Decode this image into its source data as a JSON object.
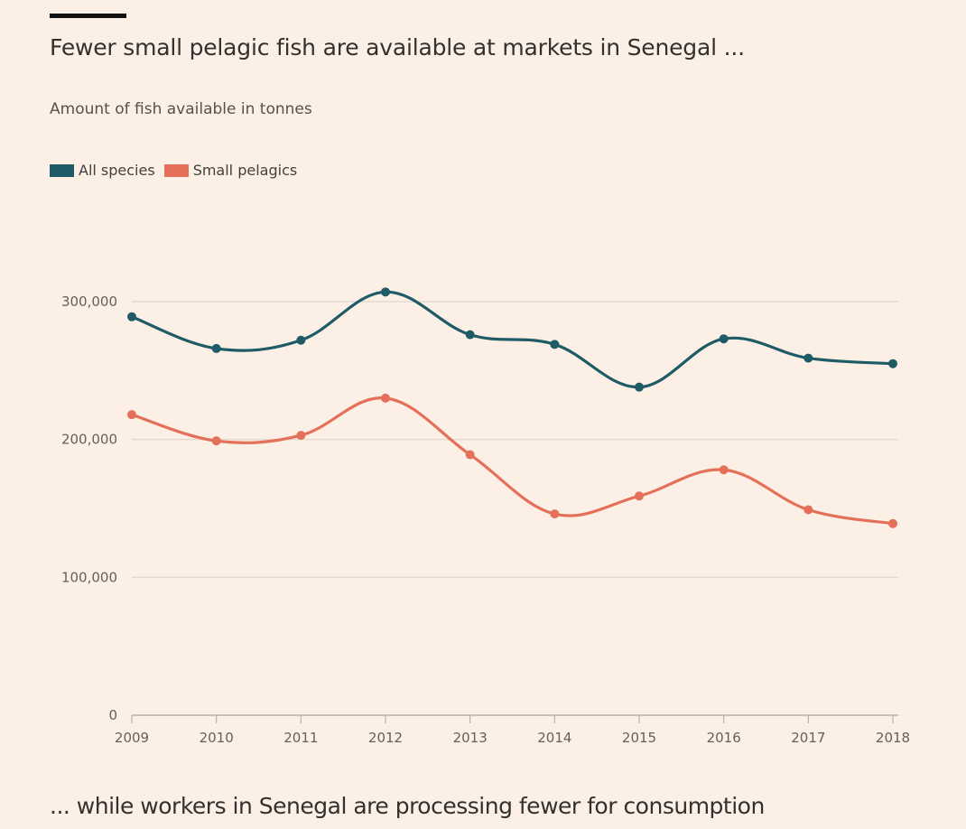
{
  "chart_data": {
    "type": "line",
    "title": "Fewer small pelagic fish are available at markets in Senegal ...",
    "subtitle": "Amount of fish available in tonnes",
    "xlabel": "",
    "ylabel": "",
    "x": [
      "2009",
      "2010",
      "2011",
      "2012",
      "2013",
      "2014",
      "2015",
      "2016",
      "2017",
      "2018"
    ],
    "ylim": [
      0,
      300000
    ],
    "yticks": [
      0,
      100000,
      200000,
      300000
    ],
    "ytick_labels": [
      "0",
      "100,000",
      "200,000",
      "300,000"
    ],
    "grid": true,
    "legend_position": "top-left",
    "series": [
      {
        "name": "All species",
        "color": "#1f5b67",
        "values": [
          289000,
          266000,
          272000,
          307000,
          276000,
          269000,
          238000,
          273000,
          259000,
          255000
        ]
      },
      {
        "name": "Small pelagics",
        "color": "#e5705a",
        "values": [
          218000,
          199000,
          203000,
          230000,
          189000,
          146000,
          159000,
          178000,
          149000,
          139000
        ]
      }
    ]
  },
  "footer": "... while workers in Senegal are processing fewer for consumption"
}
